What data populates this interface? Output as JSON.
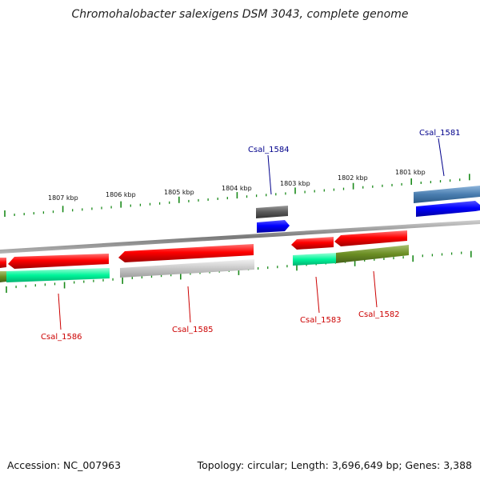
{
  "title": "Chromohalobacter salexigens DSM 3043, complete genome",
  "footer": {
    "accession": "Accession: NC_007963",
    "summary": "Topology: circular; Length: 3,696,649 bp; Genes: 3,388"
  },
  "colors": {
    "backbone": "#8a8a8a",
    "tick": "#1a8a1a",
    "label_forward": "#00008b",
    "label_reverse": "#cc0000"
  },
  "scale": {
    "unit": "kbp",
    "ticks": [
      {
        "label": "1807 kbp",
        "kbp": 1807
      },
      {
        "label": "1806 kbp",
        "kbp": 1806
      },
      {
        "label": "1805 kbp",
        "kbp": 1805
      },
      {
        "label": "1804 kbp",
        "kbp": 1804
      },
      {
        "label": "1803 kbp",
        "kbp": 1803
      },
      {
        "label": "1802 kbp",
        "kbp": 1802
      },
      {
        "label": "1801 kbp",
        "kbp": 1801
      }
    ]
  },
  "gene_labels": [
    {
      "text": "Csal_1581",
      "strand": "forward"
    },
    {
      "text": "Csal_1582",
      "strand": "reverse"
    },
    {
      "text": "Csal_1583",
      "strand": "reverse"
    },
    {
      "text": "Csal_1584",
      "strand": "forward"
    },
    {
      "text": "Csal_1585",
      "strand": "reverse"
    },
    {
      "text": "Csal_1586",
      "strand": "reverse"
    }
  ]
}
